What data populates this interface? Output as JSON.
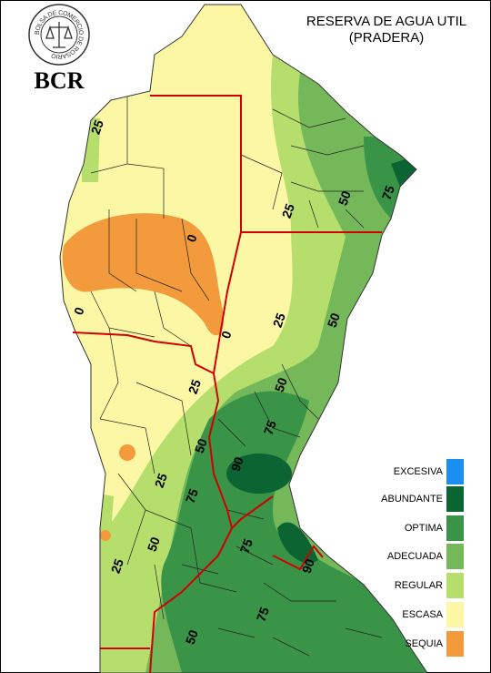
{
  "logo": {
    "ring_text": "BOLSA DE COMERCIO DE ROSARIO",
    "abbr": "BCR"
  },
  "title": "RESERVA DE AGUA UTIL",
  "subtitle": "(PRADERA)",
  "legend": [
    {
      "label": "EXCESIVA",
      "color": "#1a8ff0"
    },
    {
      "label": "ABUNDANTE",
      "color": "#0b6532"
    },
    {
      "label": "OPTIMA",
      "color": "#3a9447"
    },
    {
      "label": "ADECUADA",
      "color": "#74b85a"
    },
    {
      "label": "REGULAR",
      "color": "#b6de6c"
    },
    {
      "label": "ESCASA",
      "color": "#fbf7a4"
    },
    {
      "label": "SEQUIA",
      "color": "#f39a3c"
    }
  ],
  "contour_labels": [
    25,
    25,
    50,
    75,
    0,
    0,
    0,
    25,
    50,
    25,
    50,
    75,
    90,
    50,
    25,
    75,
    50,
    25,
    75,
    90,
    75,
    50
  ]
}
